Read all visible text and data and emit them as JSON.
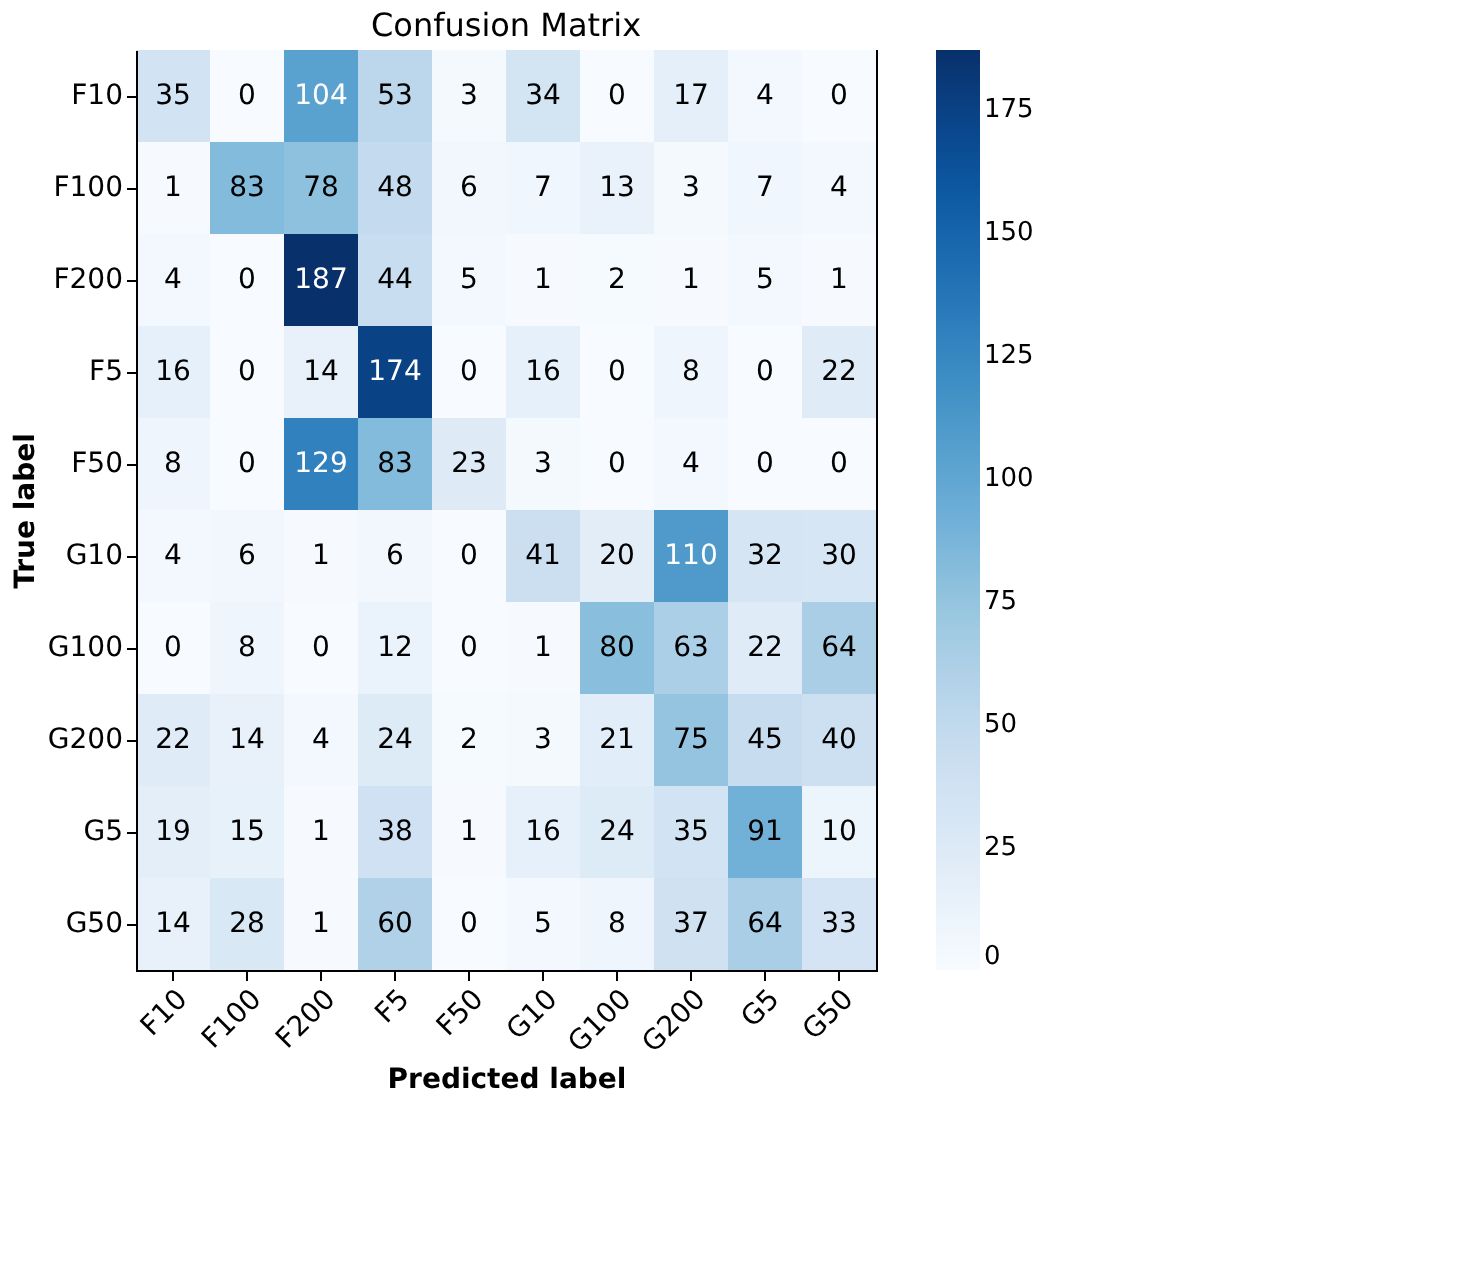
{
  "chart_data": {
    "type": "heatmap",
    "title": "Confusion Matrix",
    "xlabel": "Predicted label",
    "ylabel": "True label",
    "categories": [
      "F10",
      "F100",
      "F200",
      "F5",
      "F50",
      "G10",
      "G100",
      "G200",
      "G5",
      "G50"
    ],
    "y_categories": [
      "F10",
      "F100",
      "F200",
      "F5",
      "F50",
      "G10",
      "G100",
      "G200",
      "G5",
      "G50"
    ],
    "cells": [
      [
        35,
        0,
        104,
        53,
        3,
        34,
        0,
        17,
        4,
        0
      ],
      [
        1,
        83,
        78,
        48,
        6,
        7,
        13,
        3,
        7,
        4
      ],
      [
        4,
        0,
        187,
        44,
        5,
        1,
        2,
        1,
        5,
        1
      ],
      [
        16,
        0,
        14,
        174,
        0,
        16,
        0,
        8,
        0,
        22
      ],
      [
        8,
        0,
        129,
        83,
        23,
        3,
        0,
        4,
        0,
        0
      ],
      [
        4,
        6,
        1,
        6,
        0,
        41,
        20,
        110,
        32,
        30
      ],
      [
        0,
        8,
        0,
        12,
        0,
        1,
        80,
        63,
        22,
        64
      ],
      [
        22,
        14,
        4,
        24,
        2,
        3,
        21,
        75,
        45,
        40
      ],
      [
        19,
        15,
        1,
        38,
        1,
        16,
        24,
        35,
        91,
        10
      ],
      [
        14,
        28,
        1,
        60,
        0,
        5,
        8,
        37,
        64,
        33
      ]
    ],
    "clim": [
      0,
      187
    ],
    "cticks": [
      0,
      25,
      50,
      75,
      100,
      125,
      150,
      175
    ],
    "data_labels": true
  }
}
